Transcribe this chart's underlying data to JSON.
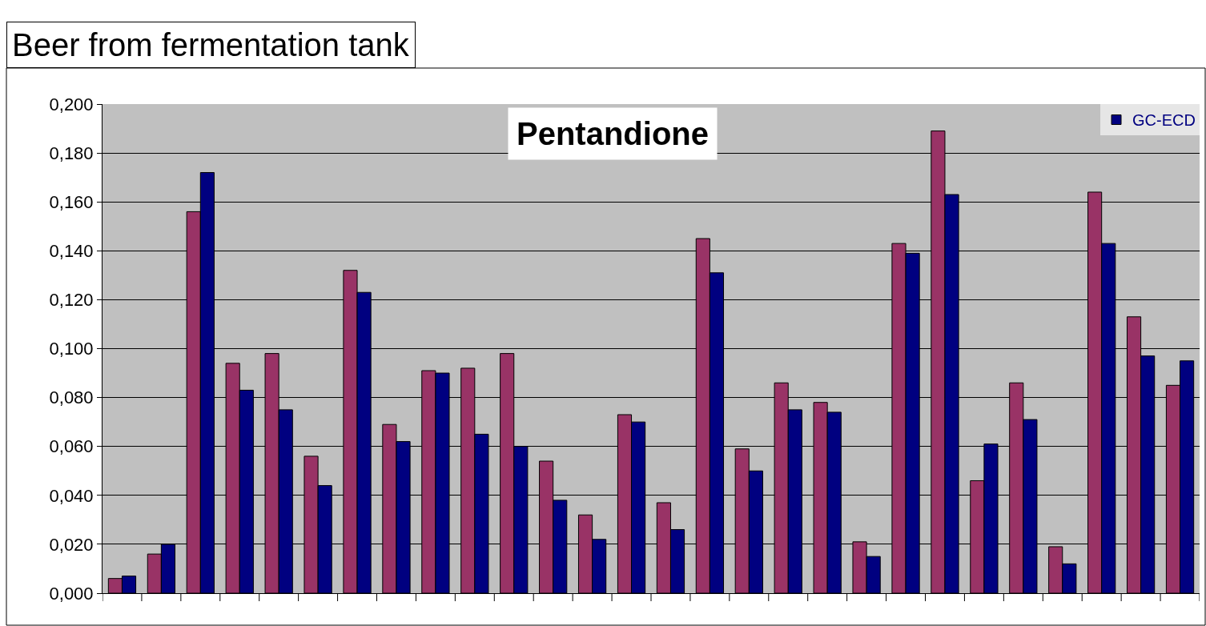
{
  "chart_data": {
    "type": "bar",
    "title": "Beer from fermentation tank",
    "subtitle": "Pentandione",
    "categories": [
      null,
      null,
      null,
      null,
      null,
      null,
      null,
      null,
      null,
      null,
      null,
      null,
      null,
      null,
      null,
      null,
      null,
      null,
      null,
      null,
      null,
      null,
      null,
      null,
      null,
      null,
      null,
      null
    ],
    "series": [
      {
        "color": "#993366",
        "values": [
          0.006,
          0.016,
          0.156,
          0.094,
          0.098,
          0.056,
          0.132,
          0.069,
          0.091,
          0.092,
          0.098,
          0.054,
          0.032,
          0.073,
          0.037,
          0.145,
          0.059,
          0.086,
          0.078,
          0.021,
          0.143,
          0.189,
          0.046,
          0.086,
          0.019,
          0.164,
          0.113,
          0.085
        ]
      },
      {
        "name": "GC-ECD",
        "color": "#000080",
        "values": [
          0.007,
          0.02,
          0.172,
          0.083,
          0.075,
          0.044,
          0.123,
          0.062,
          0.09,
          0.065,
          0.06,
          0.038,
          0.022,
          0.07,
          0.026,
          0.131,
          0.05,
          0.075,
          0.074,
          0.015,
          0.139,
          0.163,
          0.061,
          0.071,
          0.012,
          0.143,
          0.097,
          0.095
        ]
      }
    ],
    "ylim": [
      0,
      0.2
    ],
    "yticks": [
      {
        "value": 0,
        "label": "0,000"
      },
      {
        "value": 0.02,
        "label": "0,020"
      },
      {
        "value": 0.04,
        "label": "0,040"
      },
      {
        "value": 0.06,
        "label": "0,060"
      },
      {
        "value": 0.08,
        "label": "0,080"
      },
      {
        "value": 0.1,
        "label": "0,100"
      },
      {
        "value": 0.12,
        "label": "0,120"
      },
      {
        "value": 0.14,
        "label": "0,140"
      },
      {
        "value": 0.16,
        "label": "0,160"
      },
      {
        "value": 0.18,
        "label": "0,180"
      },
      {
        "value": 0.2,
        "label": "0,200"
      }
    ],
    "grid": "y",
    "legend": "top right",
    "tick_labels": "y"
  }
}
